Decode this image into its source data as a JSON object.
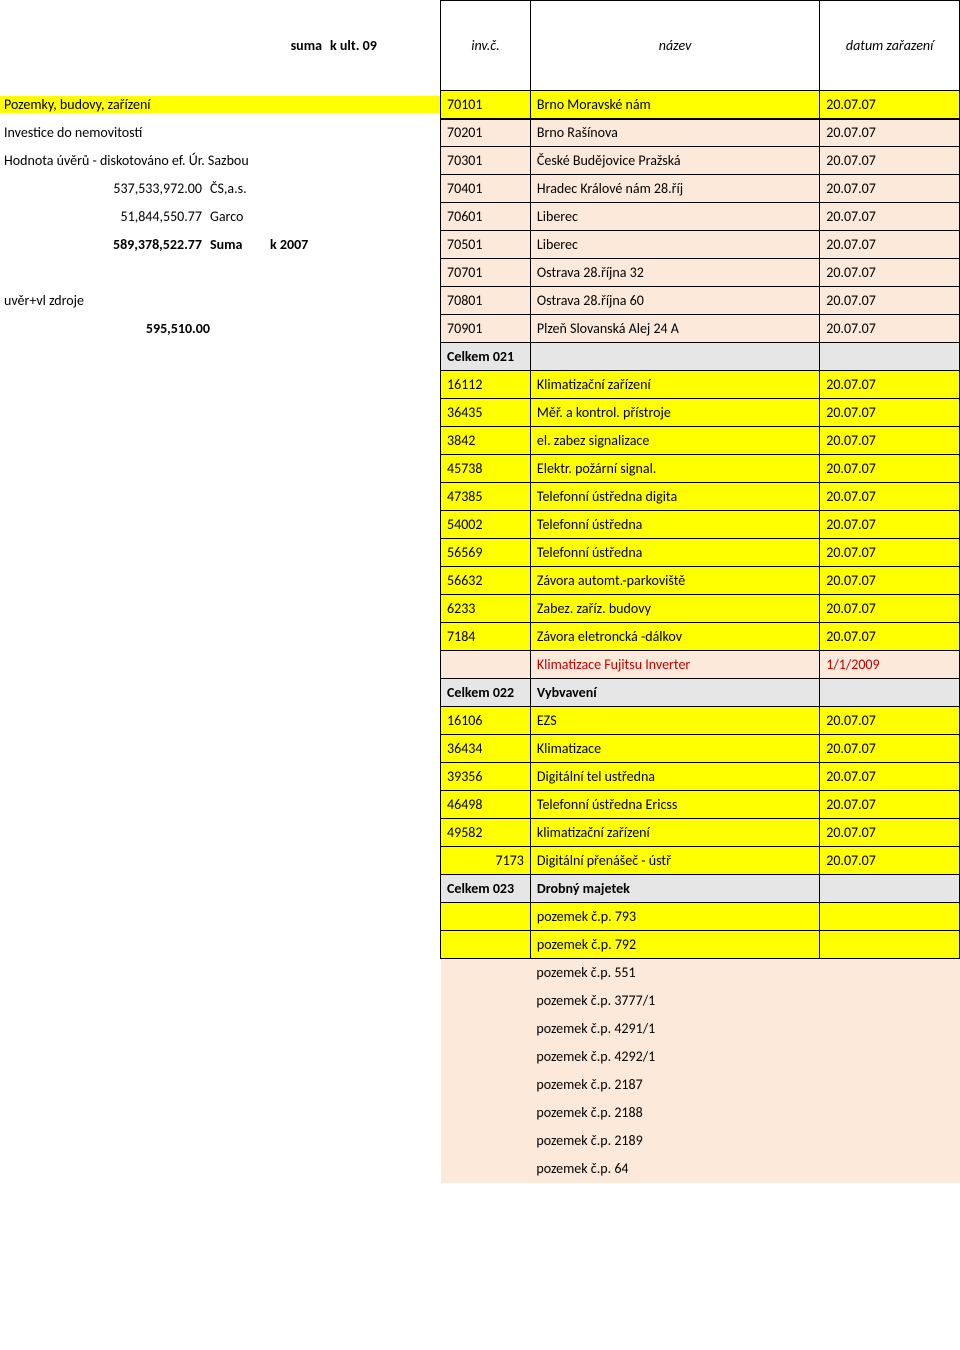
{
  "left": {
    "header_suma": "suma",
    "header_k": "k ult. 09",
    "lines": [
      {
        "label": "Pozemky, budovy, zařízení",
        "hl": true
      },
      {
        "label": "Investice do nemovitostí"
      },
      {
        "label": "Hodnota úvěrů - diskotováno ef. Úr. Sazbou"
      },
      {
        "num": "537,533,972.00",
        "c3": "ČS,a.s.",
        "indent": true
      },
      {
        "num": "51,844,550.77",
        "c3": "Garco",
        "indent": true
      },
      {
        "num": "589,378,522.77",
        "c3": "Suma",
        "c4": "k 2007",
        "indent": true,
        "bold": true
      }
    ],
    "uver_label": "uvěr+vl zdroje",
    "uver_num": "595,510.00"
  },
  "right": {
    "headers": {
      "inv": "inv.č.",
      "name": "název",
      "date": "datum zařazení"
    },
    "rows": [
      {
        "inv": "70101",
        "name": "Brno Moravské nám",
        "date": "20.07.07",
        "cls": "row-yellow"
      },
      {
        "inv": "70201",
        "name": "Brno Rašínova",
        "date": "20.07.07",
        "cls": "row-peach"
      },
      {
        "inv": "70301",
        "name": "České Budějovice Pražská",
        "date": "20.07.07",
        "cls": "row-peach"
      },
      {
        "inv": "70401",
        "name": "Hradec Králové nám 28.říj",
        "date": "20.07.07",
        "cls": "row-peach"
      },
      {
        "inv": "70601",
        "name": "Liberec",
        "date": "20.07.07",
        "cls": "row-peach"
      },
      {
        "inv": "70501",
        "name": "Liberec",
        "date": "20.07.07",
        "cls": "row-peach"
      },
      {
        "inv": "70701",
        "name": "Ostrava 28.října 32",
        "date": "20.07.07",
        "cls": "row-peach"
      },
      {
        "inv": "70801",
        "name": "Ostrava 28.října 60",
        "date": "20.07.07",
        "cls": "row-peach"
      },
      {
        "inv": "70901",
        "name": "Plzeň Slovanská Alej 24 A",
        "date": "20.07.07",
        "cls": "row-peach"
      },
      {
        "inv": "Celkem 021",
        "name": "",
        "date": "",
        "cls": "row-gray"
      },
      {
        "inv": "16112",
        "name": "Klimatizační zařízení",
        "date": "20.07.07",
        "cls": "row-yellow"
      },
      {
        "inv": "36435",
        "name": "Měř. a kontrol. přístroje",
        "date": "20.07.07",
        "cls": "row-yellow"
      },
      {
        "inv": "3842",
        "name": "el. zabez signalizace",
        "date": "20.07.07",
        "cls": "row-yellow"
      },
      {
        "inv": "45738",
        "name": "Elektr. požární signal.",
        "date": "20.07.07",
        "cls": "row-yellow"
      },
      {
        "inv": "47385",
        "name": "Telefonní ústředna digita",
        "date": "20.07.07",
        "cls": "row-yellow"
      },
      {
        "inv": "54002",
        "name": "Telefonní ústředna",
        "date": "20.07.07",
        "cls": "row-yellow"
      },
      {
        "inv": "56569",
        "name": "Telefonní ústředna",
        "date": "20.07.07",
        "cls": "row-yellow"
      },
      {
        "inv": "56632",
        "name": "Závora automt.-parkoviště",
        "date": "20.07.07",
        "cls": "row-yellow"
      },
      {
        "inv": "6233",
        "name": "Zabez. zaříz. budovy",
        "date": "20.07.07",
        "cls": "row-yellow"
      },
      {
        "inv": "7184",
        "name": "Závora eletroncká -dálkov",
        "date": "20.07.07",
        "cls": "row-yellow"
      },
      {
        "inv": "",
        "name": "Klimatizace Fujitsu Inverter",
        "date": "1/1/2009",
        "cls": "row-peach row-red"
      },
      {
        "inv": "Celkem 022",
        "name": "Vybvavení",
        "date": "",
        "cls": "row-gray"
      },
      {
        "inv": "16106",
        "name": "EZS",
        "date": "20.07.07",
        "cls": "row-yellow"
      },
      {
        "inv": "36434",
        "name": "Klimatizace",
        "date": "20.07.07",
        "cls": "row-yellow"
      },
      {
        "inv": "39356",
        "name": "Digitální tel ustředna",
        "date": "20.07.07",
        "cls": "row-yellow"
      },
      {
        "inv": "46498",
        "name": "Telefonní ústředna Ericss",
        "date": "20.07.07",
        "cls": "row-yellow"
      },
      {
        "inv": "49582",
        "name": "klimatizační zařízení",
        "date": "20.07.07",
        "cls": "row-yellow"
      },
      {
        "inv": "7173",
        "name": "Digitální přenášeč - ústř",
        "date": "20.07.07",
        "cls": "row-yellow rt-inv-right"
      },
      {
        "inv": "Celkem 023",
        "name": "Drobný majetek",
        "date": "",
        "cls": "row-gray"
      },
      {
        "inv": "",
        "name": "pozemek č.p. 793",
        "date": "",
        "cls": "row-yellow"
      },
      {
        "inv": "",
        "name": "pozemek č.p. 792",
        "date": "",
        "cls": "row-yellow"
      },
      {
        "inv": "",
        "name": "pozemek č.p. 551",
        "date": "",
        "cls": "row-peach-nb"
      },
      {
        "inv": "",
        "name": "pozemek č.p. 3777/1",
        "date": "",
        "cls": "row-peach-nb"
      },
      {
        "inv": "",
        "name": "pozemek č.p. 4291/1",
        "date": "",
        "cls": "row-peach-nb"
      },
      {
        "inv": "",
        "name": "pozemek č.p. 4292/1",
        "date": "",
        "cls": "row-peach-nb"
      },
      {
        "inv": "",
        "name": "pozemek č.p. 2187",
        "date": "",
        "cls": "row-peach-nb"
      },
      {
        "inv": "",
        "name": "pozemek č.p. 2188",
        "date": "",
        "cls": "row-peach-nb"
      },
      {
        "inv": "",
        "name": "pozemek č.p. 2189",
        "date": "",
        "cls": "row-peach-nb"
      },
      {
        "inv": "",
        "name": "pozemek č.p. 64",
        "date": "",
        "cls": "row-peach-nb"
      }
    ]
  }
}
